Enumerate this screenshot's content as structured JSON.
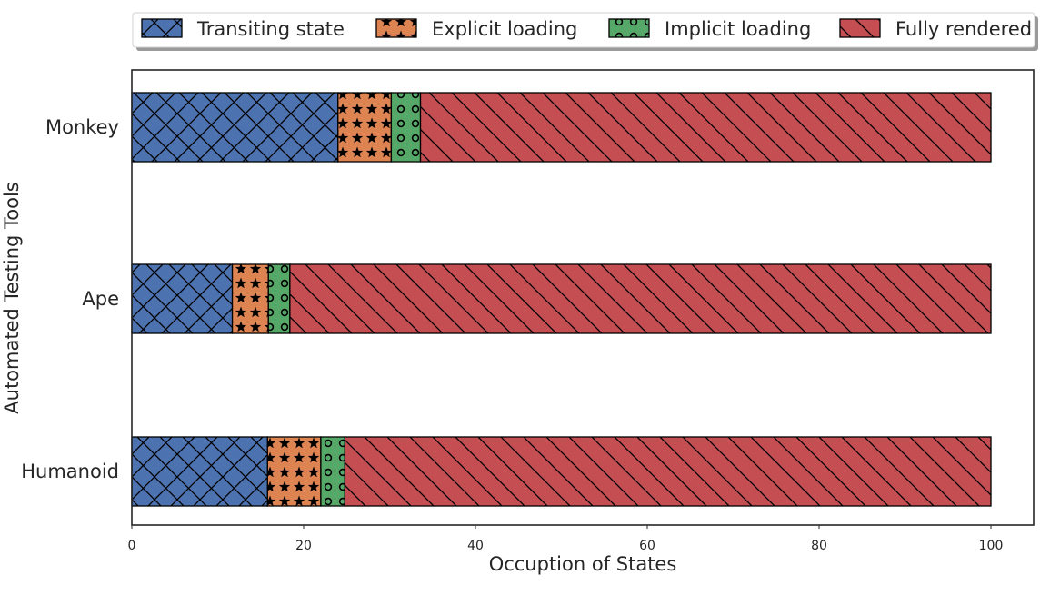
{
  "chart_data": {
    "type": "bar",
    "orientation": "horizontal",
    "stacked": true,
    "categories": [
      "Monkey",
      "Ape",
      "Humanoid"
    ],
    "series": [
      {
        "name": "Transiting state",
        "color": "#4c72b0",
        "hatch": "cross",
        "values": [
          24.0,
          11.7,
          15.8
        ]
      },
      {
        "name": "Explicit loading",
        "color": "#dd8452",
        "hatch": "stars",
        "values": [
          6.2,
          4.2,
          6.2
        ]
      },
      {
        "name": "Implicit loading",
        "color": "#55a868",
        "hatch": "circles",
        "values": [
          3.4,
          2.5,
          2.8
        ]
      },
      {
        "name": "Fully rendered",
        "color": "#c44e52",
        "hatch": "backslash",
        "values": [
          66.4,
          81.6,
          75.2
        ]
      }
    ],
    "xlabel": "Occuption of States",
    "ylabel": "Automated Testing Tools",
    "xlim": [
      0,
      105
    ],
    "xticks": [
      0,
      20,
      40,
      60,
      80,
      100
    ],
    "grid": false,
    "legend_position": "top"
  }
}
